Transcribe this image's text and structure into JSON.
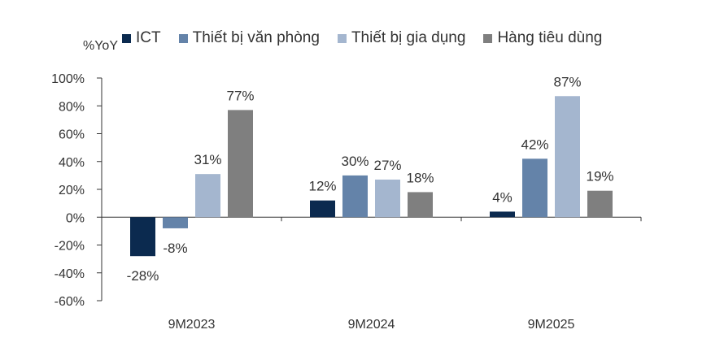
{
  "chart_data": {
    "type": "bar",
    "ylabel": "%YoY",
    "categories": [
      "9M2023",
      "9M2024",
      "9M2025"
    ],
    "series": [
      {
        "name": "ICT",
        "color": "#0b2a4f",
        "values": [
          -28,
          12,
          4
        ],
        "labels": [
          "-28%",
          "12%",
          "4%"
        ]
      },
      {
        "name": "Thiết bị văn phòng",
        "color": "#6483a9",
        "values": [
          -8,
          30,
          42
        ],
        "labels": [
          "-8%",
          "30%",
          "42%"
        ]
      },
      {
        "name": "Thiết bị gia dụng",
        "color": "#a4b6cf",
        "values": [
          31,
          27,
          87
        ],
        "labels": [
          "31%",
          "27%",
          "87%"
        ]
      },
      {
        "name": "Hàng tiêu dùng",
        "color": "#7f7f7f",
        "values": [
          77,
          18,
          19
        ],
        "labels": [
          "77%",
          "18%",
          "19%"
        ]
      }
    ],
    "yticks": [
      100,
      80,
      60,
      40,
      20,
      0,
      -20,
      -40,
      -60
    ],
    "ytick_labels": [
      "100%",
      "80%",
      "60%",
      "40%",
      "20%",
      "0%",
      "-20%",
      "-40%",
      "-60%"
    ],
    "ylim": [
      -60,
      100
    ],
    "legend_position": "top",
    "grid": false
  }
}
